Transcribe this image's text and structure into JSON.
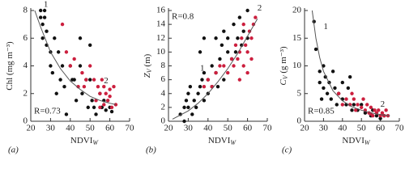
{
  "chart_data": [
    {
      "type": "scatter",
      "label": "(a)",
      "xlabel": "NDVI",
      "xlabel_subscript": "W",
      "ylabel": "Chl (mg m⁻³)",
      "xlim": [
        20,
        70
      ],
      "xticks": [
        20,
        30,
        40,
        50,
        60,
        70
      ],
      "ylim": [
        0,
        8
      ],
      "yticks": [
        0,
        2,
        4,
        6,
        8
      ],
      "annotation": "R=0.73",
      "annotation_corner": "bottom-left",
      "point_labels": [
        {
          "text": "1",
          "x": 26.5,
          "y": 8.4
        },
        {
          "text": "2",
          "x": 57,
          "y": 2.9
        }
      ],
      "series": [
        {
          "color": "#111111",
          "x": [
            25,
            25,
            26,
            26,
            27,
            27,
            28,
            28,
            30,
            30,
            31,
            32,
            33,
            34,
            35,
            36,
            37,
            38,
            40,
            41,
            42,
            43,
            45,
            46,
            48,
            49,
            50,
            51,
            52,
            53,
            55,
            56,
            57,
            58,
            60,
            61,
            45,
            50
          ],
          "values": [
            8,
            7.5,
            7,
            6,
            8,
            7.5,
            5.5,
            6.5,
            5,
            4,
            3.5,
            6,
            2,
            5,
            3,
            4,
            2.5,
            0.5,
            4,
            3,
            3,
            1.5,
            4,
            2,
            3,
            1,
            3,
            1.5,
            1,
            0.5,
            2,
            1,
            1.5,
            0.8,
            1,
            0.7,
            6,
            5.5
          ]
        },
        {
          "color": "#cc1f3e",
          "x": [
            36,
            38,
            40,
            42,
            44,
            46,
            47,
            48,
            50,
            52,
            54,
            55,
            56,
            57,
            58,
            59,
            60,
            61,
            62,
            63,
            53,
            57,
            60,
            55
          ],
          "values": [
            7,
            5,
            4,
            4.5,
            2.5,
            3.5,
            2.5,
            3,
            4,
            3,
            2.5,
            2,
            3,
            2.5,
            2,
            1.5,
            1.8,
            1,
            2.5,
            1.2,
            1.5,
            1.2,
            2.3,
            1
          ]
        }
      ],
      "fit": {
        "x": [
          22,
          25,
          30,
          35,
          40,
          45,
          50,
          55,
          60,
          63
        ],
        "values": [
          8,
          6.8,
          5,
          3.8,
          2.9,
          2.3,
          1.8,
          1.5,
          1.3,
          1.2
        ]
      }
    },
    {
      "type": "scatter",
      "label": "(b)",
      "xlabel": "NDVI",
      "xlabel_subscript": "W",
      "ylabel": "Z",
      "ylabel_subscript": "V",
      "ylabel_unit": " (m)",
      "xlim": [
        20,
        70
      ],
      "xticks": [
        20,
        30,
        40,
        50,
        60,
        70
      ],
      "ylim": [
        0,
        16
      ],
      "yticks": [
        0,
        2,
        4,
        6,
        8,
        10,
        12,
        14,
        16
      ],
      "annotation": "R=0.8",
      "annotation_corner": "top-left",
      "point_labels": [
        {
          "text": "1",
          "x": 36,
          "y": 7.6
        },
        {
          "text": "2",
          "x": 65,
          "y": 16.3
        }
      ],
      "series": [
        {
          "color": "#111111",
          "x": [
            26,
            28,
            28,
            29,
            30,
            30,
            31,
            32,
            33,
            34,
            35,
            36,
            37,
            38,
            38,
            40,
            40,
            42,
            42,
            44,
            45,
            46,
            47,
            48,
            50,
            50,
            52,
            53,
            54,
            55,
            56,
            57,
            58,
            60,
            60,
            48,
            44,
            36,
            38
          ],
          "values": [
            1,
            2,
            0,
            3,
            4,
            2,
            5,
            1,
            3,
            2,
            4,
            5,
            6,
            3,
            7,
            6,
            4,
            8,
            5,
            7,
            5,
            9,
            11,
            6,
            10,
            12,
            9,
            14,
            10,
            12,
            15,
            11,
            13,
            16,
            12,
            13,
            12,
            10,
            12
          ]
        },
        {
          "color": "#cc1f3e",
          "x": [
            38,
            40,
            42,
            44,
            46,
            48,
            50,
            52,
            53,
            54,
            55,
            56,
            57,
            58,
            59,
            60,
            61,
            62,
            62,
            63,
            64,
            60,
            58,
            56
          ],
          "values": [
            5,
            6,
            5,
            7,
            8,
            8,
            7,
            9,
            8,
            11,
            9,
            10,
            12,
            8,
            11,
            10,
            13,
            9,
            12,
            14,
            15,
            7,
            14,
            6
          ]
        }
      ],
      "fit": {
        "x": [
          22,
          30,
          35,
          40,
          45,
          50,
          55,
          60,
          65
        ],
        "values": [
          0.3,
          1.5,
          2.6,
          4,
          5.7,
          7.6,
          9.8,
          12.3,
          14.8
        ]
      }
    },
    {
      "type": "scatter",
      "label": "(c)",
      "xlabel": "NDVI",
      "xlabel_subscript": "W",
      "ylabel": "C",
      "ylabel_subscript": "V",
      "ylabel_unit": " (g m⁻³)",
      "xlim": [
        20,
        70
      ],
      "xticks": [
        20,
        30,
        40,
        50,
        60,
        70
      ],
      "ylim": [
        0,
        20
      ],
      "yticks": [
        0,
        5,
        10,
        15,
        20
      ],
      "annotation": "R=0.85",
      "annotation_corner": "bottom-left",
      "point_labels": [
        {
          "text": "1",
          "x": 30,
          "y": 17
        },
        {
          "text": "2",
          "x": 60,
          "y": 3
        }
      ],
      "series": [
        {
          "color": "#111111",
          "x": [
            25,
            26,
            28,
            28,
            29,
            30,
            30,
            31,
            32,
            33,
            34,
            35,
            36,
            37,
            38,
            40,
            42,
            43,
            45,
            46,
            48,
            50,
            52,
            55,
            56,
            58,
            60,
            62,
            40,
            44
          ],
          "values": [
            18,
            13,
            7,
            9,
            4,
            6,
            10,
            8,
            5,
            7,
            4,
            9,
            6,
            3,
            5,
            4,
            3,
            6,
            2,
            3,
            2,
            3,
            1.5,
            1,
            2,
            1,
            0.5,
            1,
            7,
            8
          ]
        },
        {
          "color": "#cc1f3e",
          "x": [
            38,
            40,
            42,
            44,
            45,
            46,
            47,
            48,
            50,
            51,
            52,
            53,
            54,
            55,
            56,
            57,
            58,
            59,
            60,
            61,
            62,
            63,
            64,
            55
          ],
          "values": [
            5,
            3,
            4,
            3,
            5,
            4,
            2,
            3,
            2.5,
            4,
            2,
            3,
            1.5,
            2.5,
            1,
            2,
            1.5,
            2,
            1,
            1.5,
            1,
            2,
            1,
            1.3
          ]
        }
      ],
      "fit": {
        "x": [
          24,
          26,
          28,
          30,
          35,
          40,
          45,
          50,
          55,
          60,
          65
        ],
        "values": [
          20,
          15,
          11.5,
          9,
          5.5,
          3.7,
          2.6,
          2,
          1.5,
          1.2,
          1
        ]
      }
    }
  ]
}
